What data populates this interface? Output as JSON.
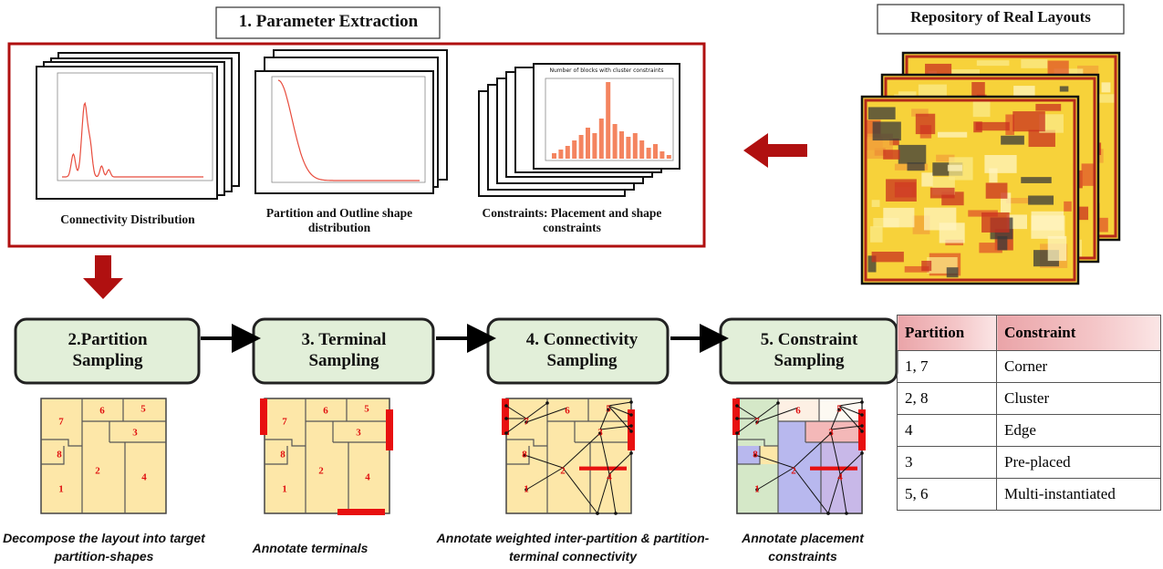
{
  "header": {
    "title": "1. Parameter Extraction",
    "repository": "Repository of Real Layouts"
  },
  "distributions": [
    {
      "label": "Connectivity Distribution"
    },
    {
      "label": "Partition and Outline shape distribution"
    },
    {
      "label": "Constraints: Placement and shape constraints",
      "plot_title": "Number of blocks with cluster constraints"
    }
  ],
  "steps": [
    {
      "title": "2.Partition Sampling",
      "caption": "Decompose the layout into target partition-shapes"
    },
    {
      "title": "3. Terminal Sampling",
      "caption": "Annotate terminals"
    },
    {
      "title": "4. Connectivity Sampling",
      "caption": "Annotate weighted inter-partition & partition-terminal connectivity"
    },
    {
      "title": "5. Constraint Sampling",
      "caption": "Annotate placement constraints"
    }
  ],
  "partition_labels": [
    "1",
    "2",
    "3",
    "4",
    "5",
    "6",
    "7",
    "8"
  ],
  "table": {
    "header": [
      "Partition",
      "Constraint"
    ],
    "rows": [
      [
        "1, 7",
        "Corner"
      ],
      [
        "2, 8",
        "Cluster"
      ],
      [
        "4",
        "Edge"
      ],
      [
        "3",
        "Pre-placed"
      ],
      [
        "5, 6",
        "Multi-instantiated"
      ]
    ]
  }
}
